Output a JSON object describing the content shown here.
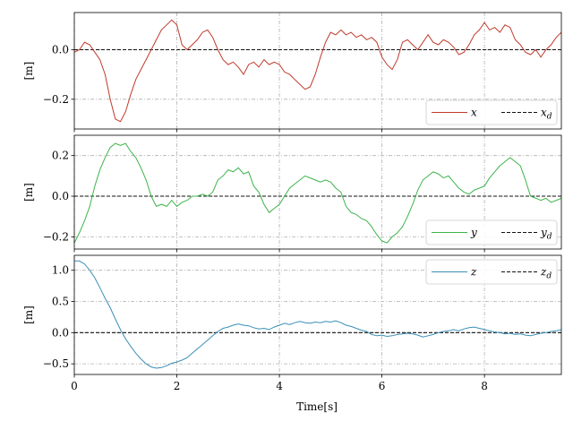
{
  "chart_data": [
    {
      "type": "line",
      "ylabel": "[m]",
      "xlabel": "",
      "xlim": [
        0,
        9.5
      ],
      "ylim": [
        -0.32,
        0.15
      ],
      "yticks": [
        -0.2,
        0.0
      ],
      "ytick_labels": [
        "−0.2",
        "0.0"
      ],
      "xticks": [
        0,
        2,
        4,
        6,
        8
      ],
      "xtick_labels": [],
      "grid": true,
      "legend_loc": "lower-right",
      "series": [
        {
          "name": "x",
          "color": "#c0392b",
          "style": "solid",
          "x": [
            0.0,
            0.1,
            0.2,
            0.3,
            0.4,
            0.5,
            0.6,
            0.7,
            0.8,
            0.9,
            1.0,
            1.1,
            1.2,
            1.3,
            1.4,
            1.5,
            1.6,
            1.7,
            1.8,
            1.9,
            2.0,
            2.1,
            2.2,
            2.3,
            2.4,
            2.5,
            2.6,
            2.7,
            2.8,
            2.9,
            3.0,
            3.1,
            3.2,
            3.3,
            3.4,
            3.5,
            3.6,
            3.7,
            3.8,
            3.9,
            4.0,
            4.1,
            4.2,
            4.3,
            4.4,
            4.5,
            4.6,
            4.7,
            4.8,
            4.9,
            5.0,
            5.1,
            5.2,
            5.3,
            5.4,
            5.5,
            5.6,
            5.7,
            5.8,
            5.9,
            6.0,
            6.1,
            6.2,
            6.3,
            6.4,
            6.5,
            6.6,
            6.7,
            6.8,
            6.9,
            7.0,
            7.1,
            7.2,
            7.3,
            7.4,
            7.5,
            7.6,
            7.7,
            7.8,
            7.9,
            8.0,
            8.1,
            8.2,
            8.3,
            8.4,
            8.5,
            8.6,
            8.7,
            8.8,
            8.9,
            9.0,
            9.1,
            9.2,
            9.3,
            9.4,
            9.5
          ],
          "y": [
            -0.01,
            0.0,
            0.03,
            0.02,
            -0.01,
            -0.04,
            -0.1,
            -0.2,
            -0.28,
            -0.29,
            -0.25,
            -0.18,
            -0.12,
            -0.08,
            -0.04,
            0.0,
            0.04,
            0.08,
            0.1,
            0.12,
            0.1,
            0.02,
            0.0,
            0.02,
            0.04,
            0.07,
            0.08,
            0.05,
            0.0,
            -0.04,
            -0.06,
            -0.05,
            -0.07,
            -0.1,
            -0.06,
            -0.05,
            -0.07,
            -0.04,
            -0.06,
            -0.05,
            -0.06,
            -0.09,
            -0.1,
            -0.12,
            -0.14,
            -0.16,
            -0.15,
            -0.1,
            -0.03,
            0.03,
            0.07,
            0.06,
            0.08,
            0.06,
            0.07,
            0.05,
            0.06,
            0.04,
            0.05,
            0.03,
            -0.03,
            -0.06,
            -0.08,
            -0.04,
            0.03,
            0.04,
            0.02,
            0.0,
            0.03,
            0.06,
            0.03,
            0.02,
            0.04,
            0.03,
            0.01,
            -0.02,
            -0.01,
            0.02,
            0.06,
            0.08,
            0.11,
            0.08,
            0.09,
            0.07,
            0.1,
            0.09,
            0.04,
            0.02,
            -0.01,
            -0.02,
            0.0,
            -0.03,
            0.0,
            0.02,
            0.05,
            0.07
          ]
        },
        {
          "name": "x_d",
          "color": "#111111",
          "style": "dashed",
          "x": [
            0,
            9.5
          ],
          "y": [
            0,
            0
          ]
        }
      ]
    },
    {
      "type": "line",
      "ylabel": "[m]",
      "xlabel": "",
      "xlim": [
        0,
        9.5
      ],
      "ylim": [
        -0.26,
        0.3
      ],
      "yticks": [
        -0.2,
        0.0,
        0.2
      ],
      "ytick_labels": [
        "−0.2",
        "0.0",
        "0.2"
      ],
      "xticks": [
        0,
        2,
        4,
        6,
        8
      ],
      "xtick_labels": [],
      "grid": true,
      "legend_loc": "lower-right",
      "series": [
        {
          "name": "y",
          "color": "#3cb44b",
          "style": "solid",
          "x": [
            0.0,
            0.1,
            0.2,
            0.3,
            0.4,
            0.5,
            0.6,
            0.7,
            0.8,
            0.9,
            1.0,
            1.1,
            1.2,
            1.3,
            1.4,
            1.5,
            1.6,
            1.7,
            1.8,
            1.9,
            2.0,
            2.1,
            2.2,
            2.3,
            2.4,
            2.5,
            2.6,
            2.7,
            2.8,
            2.9,
            3.0,
            3.1,
            3.2,
            3.3,
            3.4,
            3.5,
            3.6,
            3.7,
            3.8,
            3.9,
            4.0,
            4.1,
            4.2,
            4.3,
            4.4,
            4.5,
            4.6,
            4.7,
            4.8,
            4.9,
            5.0,
            5.1,
            5.2,
            5.3,
            5.4,
            5.5,
            5.6,
            5.7,
            5.8,
            5.9,
            6.0,
            6.1,
            6.2,
            6.3,
            6.4,
            6.5,
            6.6,
            6.7,
            6.8,
            6.9,
            7.0,
            7.1,
            7.2,
            7.3,
            7.4,
            7.5,
            7.6,
            7.7,
            7.8,
            7.9,
            8.0,
            8.1,
            8.2,
            8.3,
            8.4,
            8.5,
            8.6,
            8.7,
            8.8,
            8.9,
            9.0,
            9.1,
            9.2,
            9.3,
            9.4,
            9.5
          ],
          "y": [
            -0.23,
            -0.18,
            -0.12,
            -0.05,
            0.05,
            0.13,
            0.19,
            0.24,
            0.26,
            0.25,
            0.26,
            0.22,
            0.19,
            0.14,
            0.08,
            0.0,
            -0.05,
            -0.04,
            -0.05,
            -0.02,
            -0.05,
            -0.03,
            -0.02,
            0.0,
            0.0,
            0.01,
            0.0,
            0.02,
            0.08,
            0.1,
            0.13,
            0.12,
            0.14,
            0.11,
            0.12,
            0.05,
            0.02,
            -0.04,
            -0.08,
            -0.06,
            -0.04,
            0.0,
            0.04,
            0.06,
            0.08,
            0.1,
            0.09,
            0.08,
            0.07,
            0.08,
            0.07,
            0.04,
            0.02,
            -0.05,
            -0.08,
            -0.09,
            -0.11,
            -0.12,
            -0.15,
            -0.19,
            -0.22,
            -0.23,
            -0.2,
            -0.18,
            -0.15,
            -0.1,
            -0.04,
            0.03,
            0.08,
            0.1,
            0.12,
            0.11,
            0.09,
            0.1,
            0.07,
            0.04,
            0.02,
            0.01,
            0.03,
            0.04,
            0.05,
            0.09,
            0.12,
            0.15,
            0.17,
            0.19,
            0.17,
            0.15,
            0.08,
            0.0,
            -0.01,
            -0.02,
            -0.01,
            -0.03,
            -0.02,
            -0.01
          ]
        },
        {
          "name": "y_d",
          "color": "#111111",
          "style": "dashed",
          "x": [
            0,
            9.5
          ],
          "y": [
            0,
            0
          ]
        }
      ]
    },
    {
      "type": "line",
      "ylabel": "[m]",
      "xlabel": "Time[s]",
      "xlim": [
        0,
        9.5
      ],
      "ylim": [
        -0.67,
        1.24
      ],
      "yticks": [
        -0.5,
        0.0,
        0.5,
        1.0
      ],
      "ytick_labels": [
        "−0.5",
        "0.0",
        "0.5",
        "1.0"
      ],
      "xticks": [
        0,
        2,
        4,
        6,
        8
      ],
      "xtick_labels": [
        "0",
        "2",
        "4",
        "6",
        "8"
      ],
      "grid": true,
      "legend_loc": "top-right",
      "series": [
        {
          "name": "z",
          "color": "#3a8fb7",
          "style": "solid",
          "x": [
            0.0,
            0.1,
            0.2,
            0.3,
            0.4,
            0.5,
            0.6,
            0.7,
            0.8,
            0.9,
            1.0,
            1.1,
            1.2,
            1.3,
            1.4,
            1.5,
            1.6,
            1.7,
            1.8,
            1.9,
            2.0,
            2.1,
            2.2,
            2.3,
            2.4,
            2.5,
            2.6,
            2.7,
            2.8,
            2.9,
            3.0,
            3.1,
            3.2,
            3.3,
            3.4,
            3.5,
            3.6,
            3.7,
            3.8,
            3.9,
            4.0,
            4.1,
            4.2,
            4.3,
            4.4,
            4.5,
            4.6,
            4.7,
            4.8,
            4.9,
            5.0,
            5.1,
            5.2,
            5.3,
            5.4,
            5.5,
            5.6,
            5.7,
            5.8,
            5.9,
            6.0,
            6.1,
            6.2,
            6.3,
            6.4,
            6.5,
            6.6,
            6.7,
            6.8,
            6.9,
            7.0,
            7.1,
            7.2,
            7.3,
            7.4,
            7.5,
            7.6,
            7.7,
            7.8,
            7.9,
            8.0,
            8.1,
            8.2,
            8.3,
            8.4,
            8.5,
            8.6,
            8.7,
            8.8,
            8.9,
            9.0,
            9.1,
            9.2,
            9.3,
            9.4,
            9.5
          ],
          "y": [
            1.15,
            1.15,
            1.1,
            1.0,
            0.88,
            0.72,
            0.55,
            0.4,
            0.22,
            0.05,
            -0.1,
            -0.22,
            -0.33,
            -0.42,
            -0.5,
            -0.55,
            -0.57,
            -0.56,
            -0.53,
            -0.49,
            -0.47,
            -0.44,
            -0.4,
            -0.33,
            -0.26,
            -0.19,
            -0.12,
            -0.05,
            0.02,
            0.07,
            0.09,
            0.12,
            0.14,
            0.12,
            0.11,
            0.08,
            0.06,
            0.07,
            0.05,
            0.09,
            0.12,
            0.15,
            0.13,
            0.16,
            0.18,
            0.16,
            0.15,
            0.17,
            0.16,
            0.18,
            0.17,
            0.19,
            0.16,
            0.12,
            0.1,
            0.07,
            0.04,
            0.02,
            -0.03,
            -0.05,
            -0.04,
            -0.06,
            -0.05,
            -0.03,
            -0.02,
            -0.01,
            -0.02,
            -0.04,
            -0.07,
            -0.05,
            -0.03,
            0.0,
            0.02,
            0.03,
            0.05,
            0.03,
            0.06,
            0.08,
            0.09,
            0.07,
            0.05,
            0.03,
            0.01,
            0.0,
            -0.02,
            -0.01,
            -0.03,
            -0.02,
            -0.04,
            -0.05,
            -0.03,
            -0.01,
            0.0,
            0.02,
            0.03,
            0.05
          ]
        },
        {
          "name": "z_d",
          "color": "#111111",
          "style": "dashed",
          "x": [
            0,
            9.5
          ],
          "y": [
            0,
            0
          ]
        }
      ]
    }
  ]
}
